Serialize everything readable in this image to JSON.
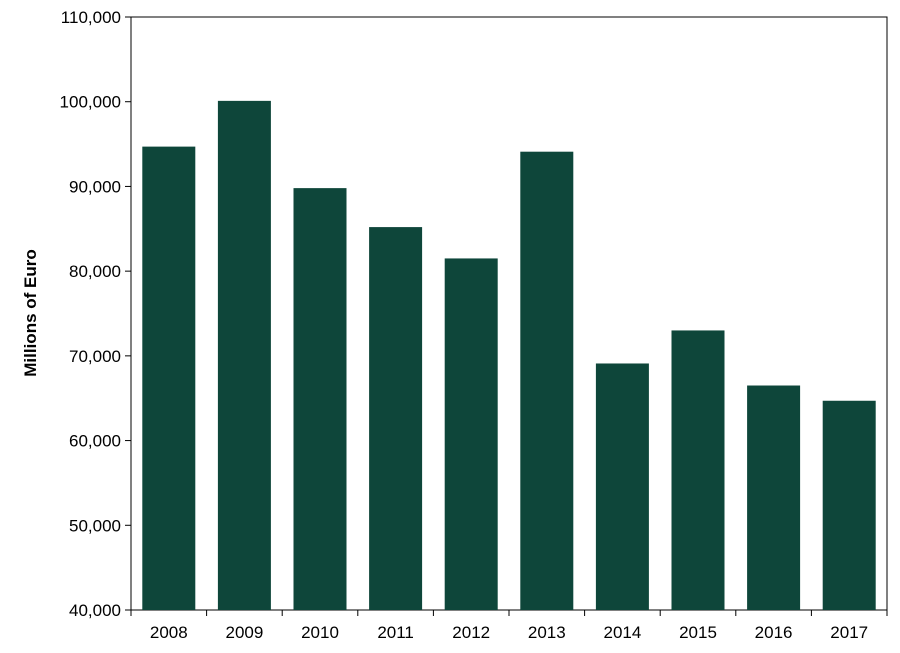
{
  "chart_data": {
    "type": "bar",
    "title": "",
    "xlabel": "",
    "ylabel": "Millions of Euro",
    "categories": [
      "2008",
      "2009",
      "2010",
      "2011",
      "2012",
      "2013",
      "2014",
      "2015",
      "2016",
      "2017"
    ],
    "values": [
      94700,
      100100,
      89800,
      85200,
      81500,
      94100,
      69100,
      73000,
      66500,
      64700
    ],
    "ylim": [
      40000,
      110000
    ],
    "yticks": [
      40000,
      50000,
      60000,
      70000,
      80000,
      90000,
      100000,
      110000
    ],
    "ytick_labels": [
      "40,000",
      "50,000",
      "60,000",
      "70,000",
      "80,000",
      "90,000",
      "100,000",
      "110,000"
    ],
    "grid": false,
    "legend": "none",
    "bar_color": "#0e463a"
  }
}
